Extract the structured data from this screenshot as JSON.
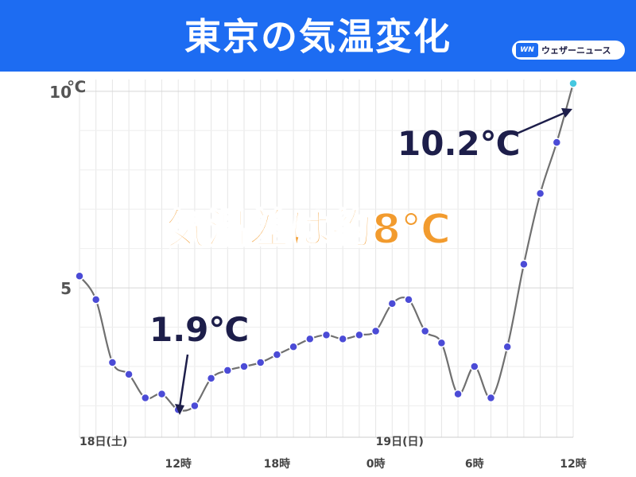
{
  "header": {
    "title": "東京の気温変化",
    "brand_logo": "WN",
    "brand_name": "ウェザーニュース",
    "background": "#1d6cf2"
  },
  "annotations": {
    "difference": "気温差は約8℃",
    "min": "1.9℃",
    "max": "10.2℃",
    "difference_color": "#f29b2e",
    "label_color": "#1d1e4a"
  },
  "chart_data": {
    "type": "line",
    "unit_label": "℃",
    "ylim": [
      1.2,
      10.3
    ],
    "yticks": [
      5,
      10
    ],
    "ytick_labels": [
      "5",
      "10"
    ],
    "x_count": 31,
    "x_tick_labels": [
      {
        "index": 6,
        "label": "12時"
      },
      {
        "index": 12,
        "label": "18時"
      },
      {
        "index": 18,
        "label": "0時"
      },
      {
        "index": 24,
        "label": "6時"
      },
      {
        "index": 30,
        "label": "12時"
      }
    ],
    "date_labels": [
      {
        "index": 0,
        "label": "18日(土)"
      },
      {
        "index": 18,
        "label": "19日(日)"
      }
    ],
    "series": [
      {
        "values": [
          5.3,
          4.7,
          3.1,
          2.8,
          2.2,
          2.3,
          1.9,
          2.0,
          2.7,
          2.9,
          3.0,
          3.1,
          3.3,
          3.5,
          3.7,
          3.8,
          3.7,
          3.8,
          3.9,
          4.6,
          4.7,
          3.9,
          3.6,
          2.3,
          3.0,
          2.2,
          3.5,
          5.6,
          7.4,
          8.7,
          10.2
        ],
        "line_color": "#707070",
        "marker_color": "#4b4bd6",
        "last_marker_color": "#46c8e0"
      }
    ],
    "grid": true
  }
}
